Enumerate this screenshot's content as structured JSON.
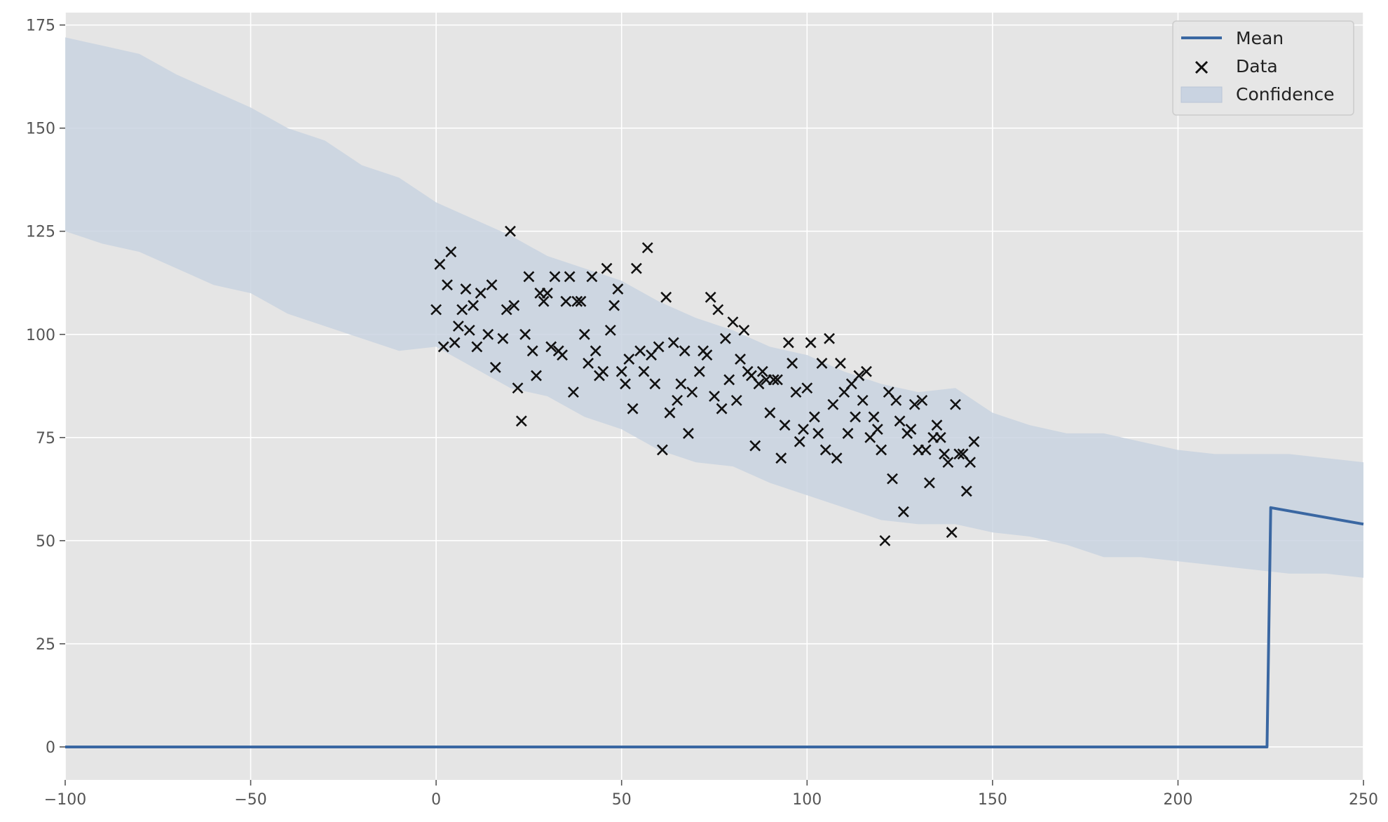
{
  "chart_data": {
    "type": "scatter",
    "xlim": [
      -100,
      250
    ],
    "ylim": [
      -8,
      178
    ],
    "x_ticks": [
      -100,
      -50,
      0,
      50,
      100,
      150,
      200,
      250
    ],
    "x_tick_labels": [
      "−100",
      "−50",
      "0",
      "50",
      "100",
      "150",
      "200",
      "250"
    ],
    "y_ticks": [
      0,
      25,
      50,
      75,
      100,
      125,
      150,
      175
    ],
    "y_tick_labels": [
      "0",
      "25",
      "50",
      "75",
      "100",
      "125",
      "150",
      "175"
    ],
    "grid": true,
    "legend_position": "top-right",
    "colors": {
      "mean": "#3a67a2",
      "data": "#111111",
      "confidence": "#c9d3e1",
      "background": "#e5e5e5",
      "grid": "#ffffff"
    },
    "series": [
      {
        "name": "Mean",
        "kind": "line",
        "points": [
          [
            -100,
            0
          ],
          [
            224,
            0
          ],
          [
            225,
            58
          ],
          [
            250,
            54
          ]
        ]
      },
      {
        "name": "Data",
        "kind": "scatter",
        "points": [
          [
            0,
            106
          ],
          [
            1,
            117
          ],
          [
            2,
            97
          ],
          [
            3,
            112
          ],
          [
            4,
            120
          ],
          [
            5,
            98
          ],
          [
            6,
            102
          ],
          [
            7,
            106
          ],
          [
            8,
            111
          ],
          [
            9,
            101
          ],
          [
            10,
            107
          ],
          [
            11,
            97
          ],
          [
            12,
            110
          ],
          [
            14,
            100
          ],
          [
            15,
            112
          ],
          [
            16,
            92
          ],
          [
            18,
            99
          ],
          [
            19,
            106
          ],
          [
            20,
            125
          ],
          [
            21,
            107
          ],
          [
            22,
            87
          ],
          [
            23,
            79
          ],
          [
            24,
            100
          ],
          [
            25,
            114
          ],
          [
            26,
            96
          ],
          [
            27,
            90
          ],
          [
            28,
            110
          ],
          [
            29,
            108
          ],
          [
            30,
            110
          ],
          [
            31,
            97
          ],
          [
            32,
            114
          ],
          [
            33,
            96
          ],
          [
            34,
            95
          ],
          [
            35,
            108
          ],
          [
            36,
            114
          ],
          [
            37,
            86
          ],
          [
            38,
            108
          ],
          [
            39,
            108
          ],
          [
            40,
            100
          ],
          [
            41,
            93
          ],
          [
            42,
            114
          ],
          [
            43,
            96
          ],
          [
            44,
            90
          ],
          [
            45,
            91
          ],
          [
            46,
            116
          ],
          [
            47,
            101
          ],
          [
            48,
            107
          ],
          [
            49,
            111
          ],
          [
            50,
            91
          ],
          [
            51,
            88
          ],
          [
            52,
            94
          ],
          [
            53,
            82
          ],
          [
            54,
            116
          ],
          [
            55,
            96
          ],
          [
            56,
            91
          ],
          [
            57,
            121
          ],
          [
            58,
            95
          ],
          [
            59,
            88
          ],
          [
            60,
            97
          ],
          [
            61,
            72
          ],
          [
            62,
            109
          ],
          [
            63,
            81
          ],
          [
            64,
            98
          ],
          [
            65,
            84
          ],
          [
            66,
            88
          ],
          [
            67,
            96
          ],
          [
            68,
            76
          ],
          [
            69,
            86
          ],
          [
            71,
            91
          ],
          [
            72,
            96
          ],
          [
            73,
            95
          ],
          [
            74,
            109
          ],
          [
            75,
            85
          ],
          [
            76,
            106
          ],
          [
            77,
            82
          ],
          [
            78,
            99
          ],
          [
            79,
            89
          ],
          [
            80,
            103
          ],
          [
            81,
            84
          ],
          [
            82,
            94
          ],
          [
            83,
            101
          ],
          [
            84,
            91
          ],
          [
            85,
            90
          ],
          [
            86,
            73
          ],
          [
            87,
            88
          ],
          [
            88,
            91
          ],
          [
            89,
            89
          ],
          [
            90,
            81
          ],
          [
            91,
            89
          ],
          [
            92,
            89
          ],
          [
            93,
            70
          ],
          [
            94,
            78
          ],
          [
            95,
            98
          ],
          [
            96,
            93
          ],
          [
            97,
            86
          ],
          [
            98,
            74
          ],
          [
            99,
            77
          ],
          [
            100,
            87
          ],
          [
            101,
            98
          ],
          [
            102,
            80
          ],
          [
            103,
            76
          ],
          [
            104,
            93
          ],
          [
            105,
            72
          ],
          [
            106,
            99
          ],
          [
            107,
            83
          ],
          [
            108,
            70
          ],
          [
            109,
            93
          ],
          [
            110,
            86
          ],
          [
            111,
            76
          ],
          [
            112,
            88
          ],
          [
            113,
            80
          ],
          [
            114,
            90
          ],
          [
            115,
            84
          ],
          [
            116,
            91
          ],
          [
            117,
            75
          ],
          [
            118,
            80
          ],
          [
            119,
            77
          ],
          [
            120,
            72
          ],
          [
            121,
            50
          ],
          [
            122,
            86
          ],
          [
            123,
            65
          ],
          [
            124,
            84
          ],
          [
            125,
            79
          ],
          [
            126,
            57
          ],
          [
            127,
            76
          ],
          [
            128,
            77
          ],
          [
            129,
            83
          ],
          [
            130,
            72
          ],
          [
            131,
            84
          ],
          [
            132,
            72
          ],
          [
            133,
            64
          ],
          [
            134,
            75
          ],
          [
            135,
            78
          ],
          [
            136,
            75
          ],
          [
            137,
            71
          ],
          [
            138,
            69
          ],
          [
            139,
            52
          ],
          [
            140,
            83
          ],
          [
            141,
            71
          ],
          [
            142,
            71
          ],
          [
            143,
            62
          ],
          [
            144,
            69
          ],
          [
            145,
            74
          ]
        ]
      },
      {
        "name": "Confidence",
        "kind": "band",
        "x": [
          -100,
          -90,
          -80,
          -70,
          -60,
          -50,
          -40,
          -30,
          -20,
          -10,
          0,
          10,
          20,
          30,
          40,
          50,
          60,
          70,
          80,
          90,
          100,
          110,
          120,
          130,
          140,
          150,
          160,
          170,
          180,
          190,
          200,
          210,
          220,
          230,
          240,
          250
        ],
        "upper": [
          172,
          170,
          168,
          163,
          159,
          155,
          150,
          147,
          141,
          138,
          132,
          128,
          124,
          119,
          116,
          113,
          108,
          104,
          101,
          97,
          95,
          91,
          88,
          86,
          87,
          81,
          78,
          76,
          76,
          74,
          72,
          71,
          71,
          71,
          70,
          69
        ],
        "lower": [
          125,
          122,
          120,
          116,
          112,
          110,
          105,
          102,
          99,
          96,
          97,
          92,
          87,
          85,
          80,
          77,
          72,
          69,
          68,
          64,
          61,
          58,
          55,
          54,
          54,
          52,
          51,
          49,
          46,
          46,
          45,
          44,
          43,
          42,
          42,
          41
        ]
      }
    ]
  }
}
